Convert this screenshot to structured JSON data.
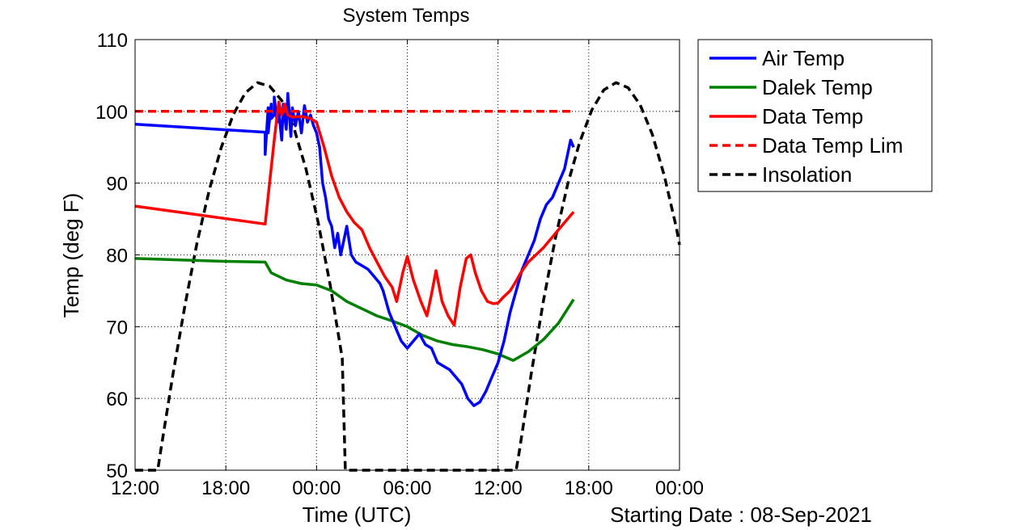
{
  "chart_data": {
    "type": "line",
    "title": "System Temps",
    "xlabel": "Time (UTC)",
    "ylabel": "Temp (deg F)",
    "footnote": "Starting Date : 08-Sep-2021",
    "xunit": "hours since 12:00 08-Sep-2021",
    "xlim": [
      0,
      36
    ],
    "ylim": [
      50,
      110
    ],
    "xticks": [
      0,
      6,
      12,
      18,
      24,
      30,
      36
    ],
    "xtick_labels": [
      "12:00",
      "18:00",
      "00:00",
      "06:00",
      "12:00",
      "18:00",
      "00:00"
    ],
    "yticks": [
      50,
      60,
      70,
      80,
      90,
      100,
      110
    ],
    "ytick_labels": [
      "50",
      "60",
      "70",
      "80",
      "90",
      "100",
      "110"
    ],
    "grid": true,
    "legend_position": "outside-top-right",
    "series": [
      {
        "name": "Air Temp",
        "color": "#0000ff",
        "dash": "solid",
        "x": [
          0,
          8.6,
          8.6,
          8.8,
          8.8,
          9.0,
          9.0,
          9.2,
          9.2,
          9.4,
          9.5,
          9.7,
          9.8,
          10.0,
          10.1,
          10.3,
          10.4,
          10.6,
          10.8,
          11.0,
          11.2,
          11.4,
          11.6,
          11.8,
          12.0,
          12.2,
          12.4,
          12.6,
          12.8,
          13.0,
          13.2,
          13.4,
          13.6,
          13.8,
          14.0,
          14.3,
          14.6,
          15.0,
          15.4,
          15.8,
          16.2,
          16.4,
          16.8,
          17.2,
          17.6,
          18.0,
          18.4,
          18.8,
          19.2,
          19.6,
          20.0,
          20.4,
          20.8,
          21.2,
          21.6,
          22.0,
          22.4,
          22.8,
          23.2,
          23.6,
          24.0,
          24.4,
          24.8,
          25.2,
          25.6,
          26.0,
          26.4,
          26.8,
          27.2,
          27.6,
          28.0,
          28.4,
          28.8,
          29.0
        ],
        "y": [
          98.2,
          97.1,
          94,
          100.5,
          97,
          101,
          99,
          99.5,
          102,
          98.5,
          100,
          96,
          101,
          97.5,
          102.5,
          96.5,
          100.5,
          98,
          100,
          97,
          100.8,
          98.5,
          99.5,
          98,
          97,
          95,
          90,
          88,
          85,
          84,
          81,
          83,
          80,
          82,
          84,
          80,
          79,
          78.5,
          78,
          77,
          76,
          75,
          72,
          70,
          68,
          67,
          68,
          69,
          67.5,
          67,
          65,
          64.5,
          64,
          63,
          62,
          60,
          59,
          59.5,
          61,
          63,
          65,
          68,
          72,
          75,
          78,
          80,
          82,
          85,
          87,
          88,
          90,
          92,
          96,
          95
        ]
      },
      {
        "name": "Dalek Temp",
        "color": "#008000",
        "dash": "solid",
        "x": [
          0,
          3,
          6,
          8.6,
          9.0,
          10,
          11,
          12,
          13,
          14,
          15,
          16,
          17,
          18,
          19,
          20,
          21,
          22,
          23,
          24,
          25,
          26,
          27,
          28,
          29
        ],
        "y": [
          79.5,
          79.3,
          79.1,
          79,
          77.5,
          76.5,
          76,
          75.8,
          75,
          73.5,
          72.5,
          71.5,
          70.8,
          70,
          68.8,
          68,
          67.5,
          67.2,
          66.8,
          66.2,
          65.3,
          66.5,
          68.2,
          70.5,
          73.8
        ]
      },
      {
        "name": "Data Temp",
        "color": "#ff0000",
        "dash": "solid",
        "x": [
          0,
          8.6,
          8.6,
          9.2,
          9.5,
          9.7,
          9.9,
          10.1,
          10.4,
          11.0,
          11.6,
          12.0,
          12.5,
          13.0,
          13.5,
          14.0,
          14.5,
          15.0,
          15.5,
          16.0,
          16.5,
          17.0,
          17.3,
          17.7,
          18.0,
          18.4,
          18.9,
          19.3,
          19.6,
          19.9,
          20.3,
          20.7,
          21.1,
          21.5,
          21.9,
          22.2,
          22.5,
          22.9,
          23.3,
          23.7,
          24.0,
          24.3,
          24.8,
          25.1,
          25.5,
          26.0,
          27.0,
          28.0,
          29.0
        ],
        "y": [
          86.8,
          84.3,
          84.3,
          96,
          101.3,
          99.5,
          101,
          99.5,
          99.2,
          99.3,
          99,
          98.5,
          95,
          91,
          88,
          86,
          84.5,
          83.5,
          81,
          79,
          77,
          75.5,
          73.5,
          77.5,
          79.8,
          76.5,
          73.5,
          71.5,
          74.5,
          77.8,
          73.5,
          71.5,
          70.2,
          75.5,
          79.5,
          80,
          77.5,
          75,
          73.5,
          73.2,
          73.3,
          74,
          75,
          76,
          77.5,
          79,
          81,
          83.5,
          86
        ]
      },
      {
        "name": "Data Temp Lim",
        "color": "#ff0000",
        "dash": "dashed",
        "x": [
          0,
          29
        ],
        "y": [
          100,
          100
        ]
      },
      {
        "name": "Insolation",
        "color": "#000000",
        "dash": "dashed",
        "x": [
          0,
          1.5,
          1.7,
          2.5,
          3.3,
          4.1,
          4.9,
          5.7,
          6.5,
          7.3,
          8.1,
          8.9,
          9.7,
          10.5,
          11.3,
          12.1,
          12.9,
          13.7,
          13.9,
          25.2,
          25.4,
          26.2,
          27.0,
          27.8,
          28.6,
          29.4,
          30.2,
          31.0,
          31.8,
          32.6,
          33.4,
          34.2,
          35.0,
          35.8,
          36.0
        ],
        "y": [
          50,
          50,
          52.8,
          63.3,
          73.0,
          81.7,
          89.0,
          95.0,
          99.6,
          102.6,
          104.0,
          103.5,
          101.5,
          97.7,
          92.0,
          84.6,
          75.8,
          65.6,
          50,
          50,
          52.5,
          63.5,
          73.6,
          82.4,
          89.8,
          95.7,
          100.2,
          103.0,
          104.0,
          103.3,
          100.9,
          96.8,
          91.0,
          83.7,
          81.4
        ]
      }
    ]
  }
}
